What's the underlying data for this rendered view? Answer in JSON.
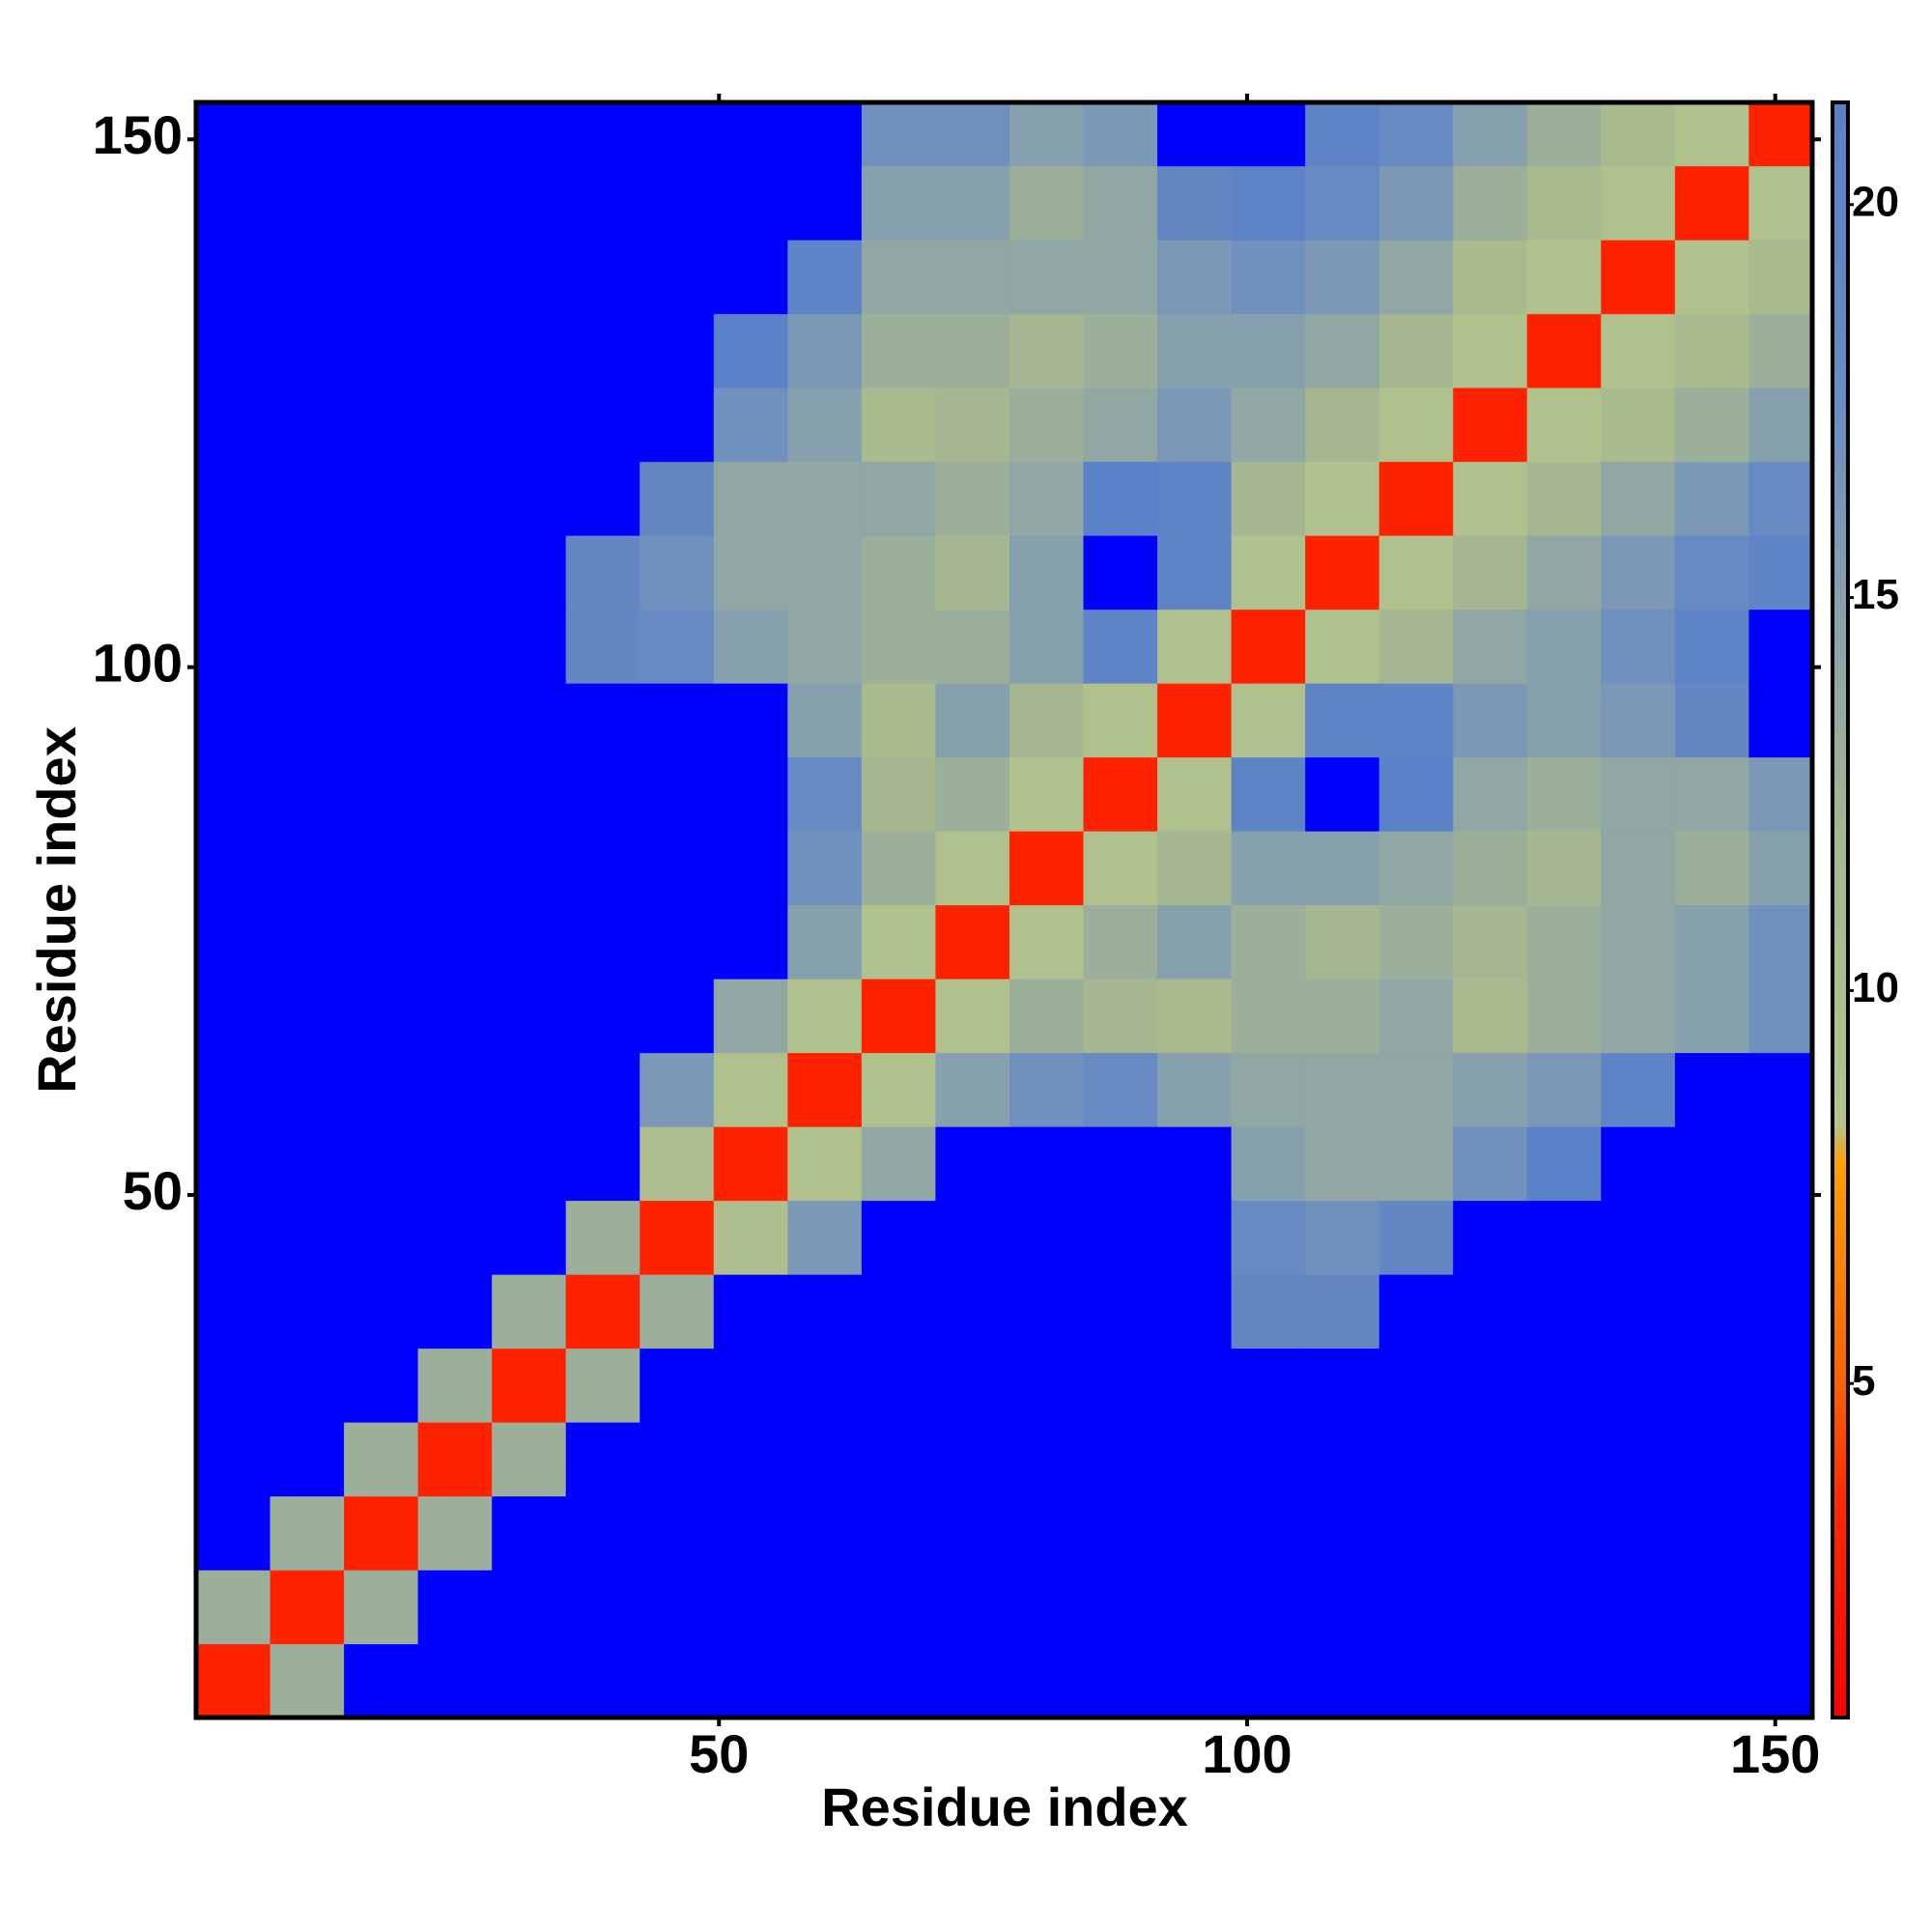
{
  "chart_data": {
    "type": "heatmap",
    "xlabel": "Residue index",
    "ylabel": "Residue index",
    "x": [
      4,
      11,
      18,
      25,
      32,
      39,
      46,
      53,
      60,
      67,
      74,
      81,
      88,
      95,
      102,
      109,
      116,
      123,
      130,
      137,
      144,
      151
    ],
    "y": [
      4,
      11,
      18,
      25,
      32,
      39,
      46,
      53,
      60,
      67,
      74,
      81,
      88,
      95,
      102,
      109,
      116,
      123,
      130,
      137,
      144,
      151
    ],
    "values": [
      [
        3,
        13,
        25,
        25,
        25,
        25,
        25,
        25,
        25,
        25,
        25,
        25,
        25,
        25,
        25,
        25,
        25,
        25,
        25,
        25,
        25,
        25
      ],
      [
        13,
        3,
        13,
        25,
        25,
        25,
        25,
        25,
        25,
        25,
        25,
        25,
        25,
        25,
        25,
        25,
        25,
        25,
        25,
        25,
        25,
        25
      ],
      [
        25,
        13,
        3,
        13,
        25,
        25,
        25,
        25,
        25,
        25,
        25,
        25,
        25,
        25,
        25,
        25,
        25,
        25,
        25,
        25,
        25,
        25
      ],
      [
        25,
        25,
        13,
        3,
        13,
        25,
        25,
        25,
        25,
        25,
        25,
        25,
        25,
        25,
        25,
        25,
        25,
        25,
        25,
        25,
        25,
        25
      ],
      [
        25,
        25,
        25,
        13,
        3,
        13,
        25,
        25,
        25,
        25,
        25,
        25,
        25,
        25,
        25,
        25,
        25,
        25,
        25,
        25,
        25,
        25
      ],
      [
        25,
        25,
        25,
        25,
        13,
        3,
        13,
        25,
        25,
        25,
        25,
        25,
        25,
        25,
        19,
        19,
        25,
        25,
        25,
        25,
        25,
        25
      ],
      [
        25,
        25,
        25,
        25,
        25,
        13,
        3,
        10,
        16,
        25,
        25,
        25,
        25,
        25,
        18,
        17,
        19,
        25,
        25,
        25,
        25,
        25
      ],
      [
        25,
        25,
        25,
        25,
        25,
        25,
        10,
        3,
        9,
        14,
        25,
        25,
        25,
        25,
        15,
        14,
        14,
        17,
        21,
        25,
        25,
        25
      ],
      [
        25,
        25,
        25,
        25,
        25,
        25,
        16,
        9,
        3,
        9,
        15,
        17,
        18,
        15,
        14,
        14,
        14,
        15,
        16,
        20,
        22,
        25
      ],
      [
        25,
        25,
        25,
        25,
        25,
        25,
        25,
        14,
        9,
        3,
        9,
        13,
        12,
        11,
        13,
        13,
        14,
        11,
        13,
        14,
        15,
        17
      ],
      [
        25,
        25,
        25,
        25,
        25,
        25,
        25,
        25,
        15,
        9,
        3,
        9,
        13,
        15,
        13,
        12,
        13,
        12,
        13,
        14,
        15,
        17
      ],
      [
        25,
        25,
        25,
        25,
        25,
        25,
        25,
        25,
        17,
        13,
        9,
        3,
        9,
        12,
        15,
        15,
        14,
        13,
        12,
        14,
        13,
        15
      ],
      [
        25,
        25,
        25,
        25,
        25,
        25,
        25,
        25,
        18,
        12,
        13,
        9,
        3,
        9,
        20,
        22,
        21,
        14,
        13,
        14,
        14,
        16
      ],
      [
        25,
        25,
        25,
        25,
        25,
        25,
        25,
        25,
        15,
        11,
        15,
        12,
        9,
        3,
        9,
        20,
        20,
        16,
        15,
        16,
        19,
        22
      ],
      [
        25,
        25,
        25,
        25,
        25,
        19,
        18,
        15,
        14,
        13,
        13,
        15,
        20,
        9,
        3,
        9,
        12,
        14,
        15,
        17,
        20,
        22
      ],
      [
        25,
        25,
        25,
        25,
        25,
        19,
        17,
        14,
        14,
        13,
        12,
        15,
        22,
        20,
        9,
        3,
        9,
        12,
        14,
        16,
        18,
        20
      ],
      [
        25,
        25,
        25,
        25,
        25,
        25,
        19,
        14,
        14,
        14,
        13,
        14,
        21,
        20,
        12,
        9,
        3,
        9,
        12,
        14,
        16,
        18
      ],
      [
        25,
        25,
        25,
        25,
        25,
        25,
        25,
        17,
        15,
        11,
        12,
        13,
        14,
        16,
        14,
        12,
        9,
        3,
        9,
        11,
        13,
        15
      ],
      [
        25,
        25,
        25,
        25,
        25,
        25,
        25,
        21,
        16,
        13,
        13,
        12,
        13,
        15,
        15,
        14,
        12,
        9,
        3,
        9,
        11,
        13
      ],
      [
        25,
        25,
        25,
        25,
        25,
        25,
        25,
        25,
        20,
        14,
        14,
        14,
        14,
        16,
        17,
        16,
        14,
        11,
        9,
        3,
        9,
        11
      ],
      [
        25,
        25,
        25,
        25,
        25,
        25,
        25,
        25,
        22,
        15,
        15,
        13,
        14,
        19,
        20,
        18,
        16,
        13,
        11,
        9,
        3,
        9
      ],
      [
        25,
        25,
        25,
        25,
        25,
        25,
        25,
        25,
        25,
        17,
        17,
        15,
        16,
        22,
        22,
        20,
        18,
        15,
        13,
        11,
        9,
        3
      ]
    ],
    "xlim": [
      0.5,
      153.5
    ],
    "ylim": [
      0.5,
      153.5
    ],
    "xticks": [
      50,
      100,
      150
    ],
    "yticks": [
      50,
      100,
      150
    ],
    "colorbar": {
      "lim": [
        0.75,
        21.3
      ],
      "ticks": [
        5,
        10,
        15,
        20
      ]
    },
    "colorscale": [
      {
        "value": 0.75,
        "color": "#ff0000"
      },
      {
        "value": 3.5,
        "color": "#ff2a00"
      },
      {
        "value": 5,
        "color": "#ff6000"
      },
      {
        "value": 7.8,
        "color": "#ffa000"
      },
      {
        "value": 8.3,
        "color": "#b4c48c"
      },
      {
        "value": 12,
        "color": "#a6b690"
      },
      {
        "value": 15,
        "color": "#87a0ae"
      },
      {
        "value": 17.5,
        "color": "#6a8cc2"
      },
      {
        "value": 21.3,
        "color": "#5a80c8"
      }
    ],
    "over_color": "#0000ff"
  }
}
